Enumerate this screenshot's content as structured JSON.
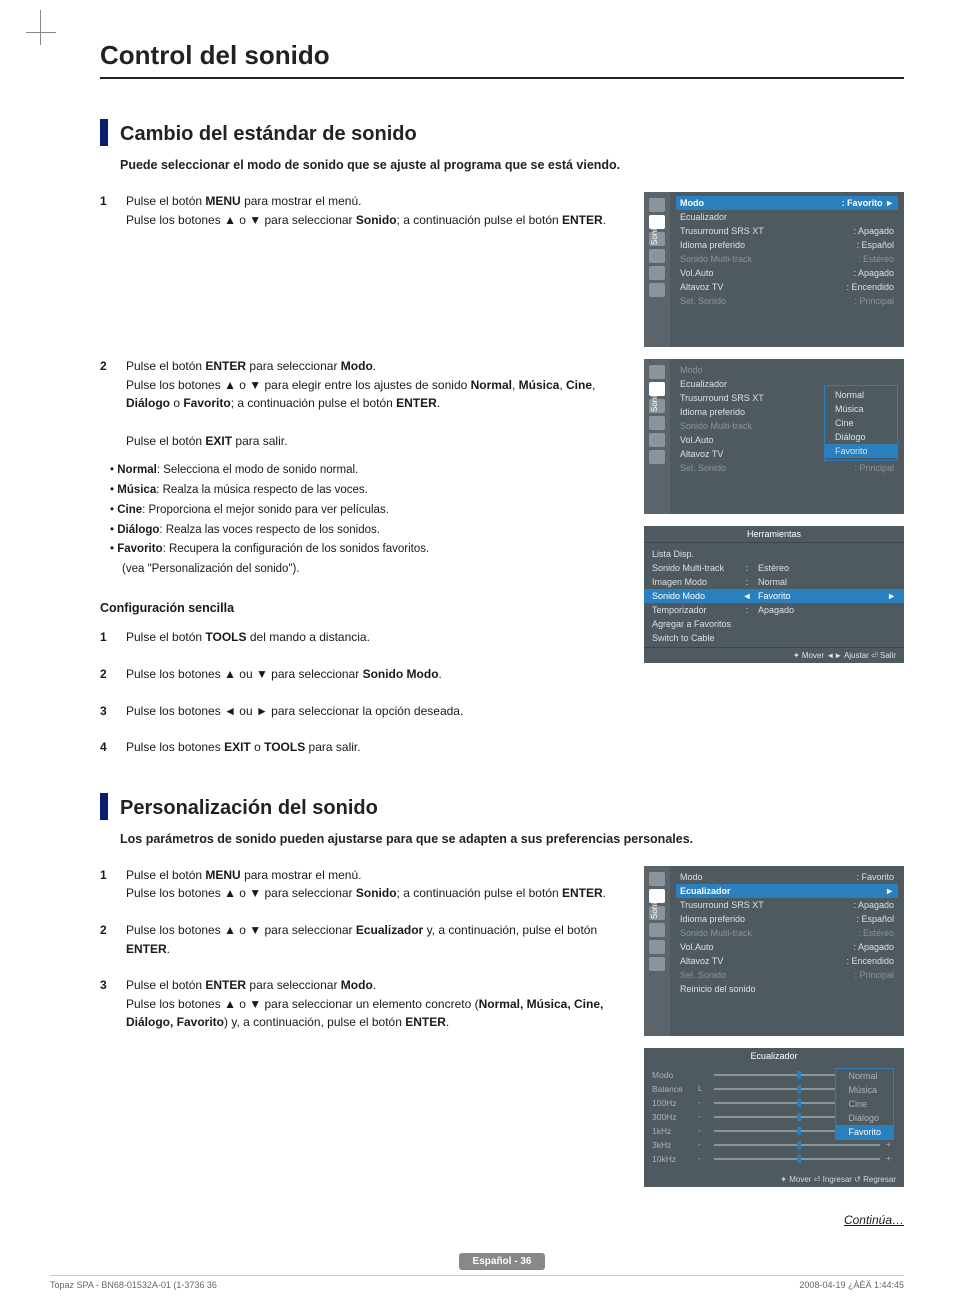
{
  "title": "Control del sonido",
  "sect1": {
    "title": "Cambio del estándar de sonido",
    "sub": "Puede seleccionar el modo de sonido que se ajuste al programa que se está viendo.",
    "steps": [
      {
        "n": "1",
        "html": "Pulse el botón <b>MENU</b> para mostrar el menú.<br>Pulse los botones ▲ o ▼ para seleccionar <b>Sonido</b>; a continuación pulse el botón <b>ENTER</b>."
      },
      {
        "n": "2",
        "html": "Pulse el botón <b>ENTER</b> para seleccionar <b>Modo</b>.<br>Pulse los botones ▲ o ▼ para elegir entre los ajustes de sonido <b>Normal</b>, <b>Música</b>, <b>Cine</b>, <b>Diálogo</b> o <b>Favorito</b>; a continuación pulse el botón <b>ENTER</b>.<br><br>Pulse el botón <b>EXIT</b> para salir."
      }
    ],
    "bullets": [
      {
        "k": "Normal",
        "v": "Selecciona el modo de sonido normal."
      },
      {
        "k": "Música",
        "v": "Realza la música respecto de las voces."
      },
      {
        "k": "Cine",
        "v": "Proporciona el mejor sonido para ver películas."
      },
      {
        "k": "Diálogo",
        "v": "Realza las voces respecto de los sonidos."
      },
      {
        "k": "Favorito",
        "v": "Recupera la configuración de los sonidos favoritos."
      }
    ],
    "bullet_note": "(vea \"Personalización del sonido\").",
    "conf_title": "Configuración sencilla",
    "conf_steps": [
      {
        "n": "1",
        "html": "Pulse el botón <b>TOOLS</b> del mando a distancia."
      },
      {
        "n": "2",
        "html": "Pulse los botones ▲ ou ▼ para seleccionar <b>Sonido Modo</b>."
      },
      {
        "n": "3",
        "html": "Pulse los botones ◄ ou ► para seleccionar la opción deseada."
      },
      {
        "n": "4",
        "html": "Pulse los botones <b>EXIT</b> o <b>TOOLS</b> para salir."
      }
    ]
  },
  "sect2": {
    "title": "Personalización del sonido",
    "sub": "Los parámetros de sonido pueden ajustarse para que se adapten a sus preferencias personales.",
    "steps": [
      {
        "n": "1",
        "html": "Pulse el botón <b>MENU</b> para mostrar el menú.<br>Pulse los botones ▲ o ▼ para seleccionar <b>Sonido</b>; a continuación pulse el botón <b>ENTER</b>."
      },
      {
        "n": "2",
        "html": "Pulse los botones ▲ o ▼ para seleccionar <b>Ecualizador</b> y, a continuación, pulse el botón <b>ENTER</b>."
      },
      {
        "n": "3",
        "html": "Pulse el botón <b>ENTER</b> para seleccionar <b>Modo</b>.<br>Pulse los botones ▲ o ▼ para seleccionar un elemento concreto (<b>Normal, Música, Cine, Diálogo, Favorito</b>) y, a continuación, pulse el botón <b>ENTER</b>."
      }
    ]
  },
  "menu1": {
    "side": "Sonido",
    "rows": [
      {
        "l": "Modo",
        "r": ": Favorito",
        "hi": true,
        "arrow": true
      },
      {
        "l": "Ecualizador",
        "r": ""
      },
      {
        "l": "Trusurround SRS XT",
        "r": ": Apagado"
      },
      {
        "l": "Idioma preferido",
        "r": ": Español"
      },
      {
        "l": "Sonido Multi-track",
        "r": ": Estéreo",
        "dim": true
      },
      {
        "l": "Vol.Auto",
        "r": ": Apagado"
      },
      {
        "l": "Altavoz TV",
        "r": ": Encendido"
      },
      {
        "l": "Sel. Sonido",
        "r": ": Principal",
        "dim": true
      }
    ]
  },
  "menu2": {
    "side": "Sonido",
    "rows": [
      {
        "l": "Modo",
        "r": "",
        "dim": true
      },
      {
        "l": "Ecualizador",
        "r": ""
      },
      {
        "l": "Trusurround SRS XT",
        "r": ":"
      },
      {
        "l": "Idioma preferido",
        "r": ":"
      },
      {
        "l": "Sonido Multi-track",
        "r": ":",
        "dim": true
      },
      {
        "l": "Vol.Auto",
        "r": ": Apagado"
      },
      {
        "l": "Altavoz TV",
        "r": ": Encendido"
      },
      {
        "l": "Sel. Sonido",
        "r": ": Principal",
        "dim": true
      }
    ],
    "popup": [
      "Normal",
      "Música",
      "Cine",
      "Diálogo",
      "Favorito"
    ],
    "popup_sel": 4
  },
  "tools": {
    "title": "Herramientas",
    "rows": [
      {
        "l": "Lista Disp.",
        "c": "",
        "r": ""
      },
      {
        "l": "Sonido Multi-track",
        "c": ":",
        "r": "Estéreo"
      },
      {
        "l": "Imagen Modo",
        "c": ":",
        "r": "Normal"
      },
      {
        "l": "Sonido Modo",
        "c": "◄",
        "r": "Favorito",
        "hl": true,
        "rarr": "►"
      },
      {
        "l": "Temporizador",
        "c": ":",
        "r": "Apagado"
      },
      {
        "l": "Agregar a Favoritos",
        "c": "",
        "r": ""
      },
      {
        "l": "Switch to Cable",
        "c": "",
        "r": ""
      }
    ],
    "foot": "✦ Mover    ◄► Ajustar    ⏎ Salir"
  },
  "menu3": {
    "side": "Sonido",
    "rows": [
      {
        "l": "Modo",
        "r": ": Favorito"
      },
      {
        "l": "Ecualizador",
        "r": "",
        "hi": true,
        "arrow": true
      },
      {
        "l": "Trusurround SRS XT",
        "r": ": Apagado"
      },
      {
        "l": "Idioma preferido",
        "r": ": Español"
      },
      {
        "l": "Sonido Multi-track",
        "r": ": Estéreo",
        "dim": true
      },
      {
        "l": "Vol.Auto",
        "r": ": Apagado"
      },
      {
        "l": "Altavoz TV",
        "r": ": Encendido"
      },
      {
        "l": "Sel. Sonido",
        "r": ": Principal",
        "dim": true
      },
      {
        "l": "Reinicio del sonido",
        "r": ""
      }
    ]
  },
  "eq": {
    "title": "Ecualizador",
    "rows": [
      "Modo",
      "Balance",
      "100Hz",
      "300Hz",
      "1kHz",
      "3kHz",
      "10kHz"
    ],
    "popup": [
      "Normal",
      "Música",
      "Cine",
      "Diálogo",
      "Favorito"
    ],
    "popup_sel": 4,
    "foot": "✦ Mover   ⏎ Ingresar  ↺ Regresar"
  },
  "continua": "Continúa…",
  "pagefoot": "Español - 36",
  "printfoot": {
    "l": "Topaz SPA - BN68-01532A-01 (1-3736   36",
    "r": "2008-04-19   ¿ÀÈÄ 1:44:45"
  },
  "colors": {
    "accent": "#2a7fbf",
    "navy": "#0a1f6b",
    "shot_bg": "#4f5a60"
  }
}
